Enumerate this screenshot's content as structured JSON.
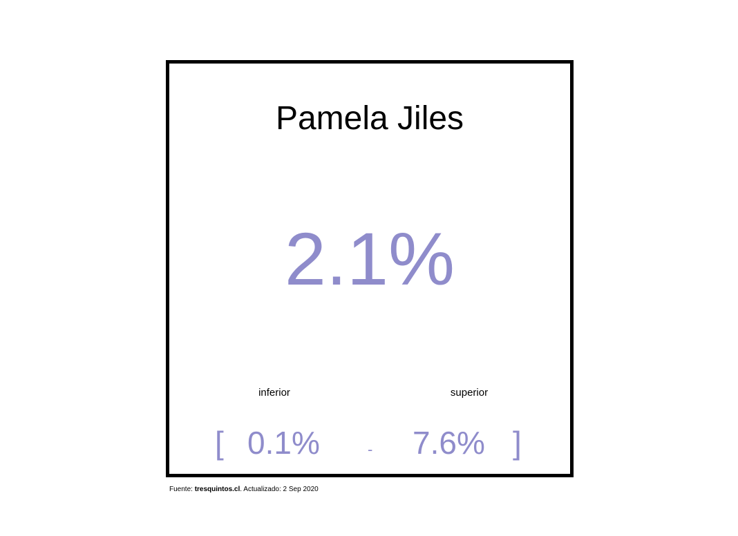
{
  "chart_data": {
    "type": "table",
    "title": "Pamela Jiles",
    "estimate": "2.1%",
    "interval": {
      "lower_label": "inferior",
      "lower": "0.1%",
      "upper_label": "superior",
      "upper": "7.6%",
      "open_bracket": "[",
      "separator": "-",
      "close_bracket": "]"
    },
    "accent_color": "#8f8ccb"
  },
  "footer": {
    "source_prefix": "Fuente: ",
    "source_site": "tresquintos.cl",
    "updated": ". Actualizado: 2 Sep 2020"
  }
}
